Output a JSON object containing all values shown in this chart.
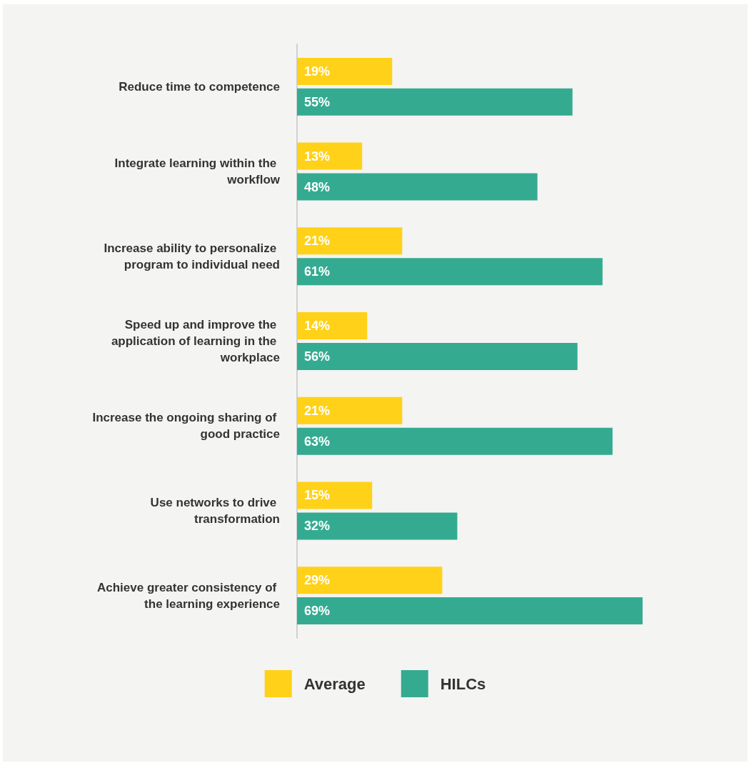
{
  "chart_data": {
    "type": "bar",
    "orientation": "horizontal",
    "categories": [
      "Reduce time to competence",
      "Integrate learning within the workflow",
      "Increase ability to personalize program to individual need",
      "Speed up and improve the application of learning in the workplace",
      "Increase the ongoing sharing of good practice",
      "Use networks to drive transformation",
      "Achieve greater consistency of the learning experience"
    ],
    "series": [
      {
        "name": "Average",
        "color": "#ffd118",
        "values": [
          19,
          13,
          21,
          14,
          21,
          15,
          29
        ],
        "value_labels": [
          "19%",
          "13%",
          "21%",
          "14%",
          "21%",
          "15%",
          "29%"
        ]
      },
      {
        "name": "HILCs",
        "color": "#34ab91",
        "values": [
          55,
          48,
          61,
          56,
          63,
          32,
          69
        ],
        "value_labels": [
          "55%",
          "48%",
          "61%",
          "56%",
          "63%",
          "32%",
          "69%"
        ]
      }
    ],
    "legend": "bottom",
    "grid": false
  }
}
